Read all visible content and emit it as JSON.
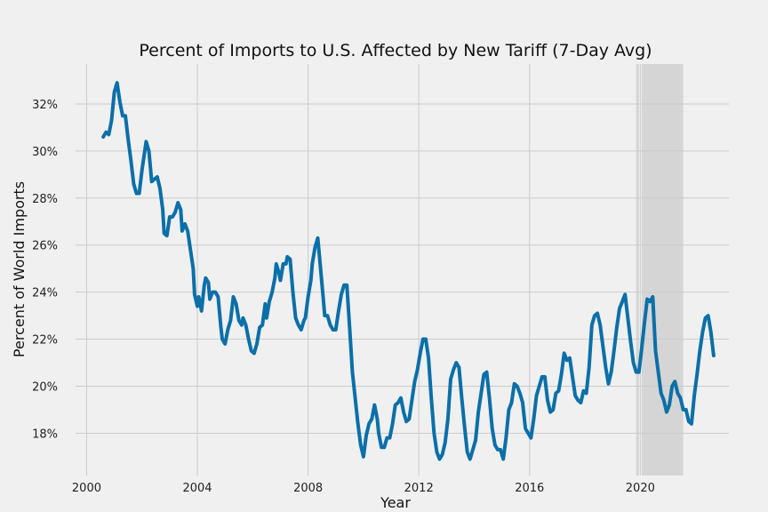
{
  "chart_data": {
    "type": "line",
    "title": "Percent of Imports to U.S. Affected by New Tariff (7-Day Avg)",
    "xlabel": "Year",
    "ylabel": "Percent of World Imports",
    "xlim": [
      1999.6,
      2023.2
    ],
    "ylim": [
      16.2,
      33.7
    ],
    "xticks": [
      2000,
      2004,
      2008,
      2012,
      2016,
      2020
    ],
    "xtick_labels": [
      "2000",
      "2004",
      "2008",
      "2012",
      "2016",
      "2020"
    ],
    "yticks": [
      18,
      20,
      22,
      24,
      26,
      28,
      30,
      32
    ],
    "ytick_labels": [
      "18%",
      "20%",
      "22%",
      "24%",
      "26%",
      "28%",
      "30%",
      "32%"
    ],
    "grid": true,
    "shaded_region": {
      "x_start": 2019.85,
      "x_end": 2021.55,
      "color": "#d5d5d5"
    },
    "reference_line": {
      "x": 2020.0,
      "color": "#f0f0f0"
    },
    "colors": {
      "background": "#f0f0f0",
      "line": "#0b6fa8",
      "grid": "#cbcbcb"
    },
    "series": [
      {
        "points": [
          [
            2000.6,
            30.6
          ],
          [
            2000.7,
            30.8
          ],
          [
            2000.8,
            30.7
          ],
          [
            2000.9,
            31.3
          ],
          [
            2001.0,
            32.5
          ],
          [
            2001.1,
            32.9
          ],
          [
            2001.2,
            32.1
          ],
          [
            2001.3,
            31.5
          ],
          [
            2001.4,
            31.5
          ],
          [
            2001.5,
            30.5
          ],
          [
            2001.6,
            29.6
          ],
          [
            2001.7,
            28.6
          ],
          [
            2001.8,
            28.2
          ],
          [
            2001.9,
            28.2
          ],
          [
            2002.0,
            29.2
          ],
          [
            2002.1,
            30.0
          ],
          [
            2002.15,
            30.4
          ],
          [
            2002.25,
            30.0
          ],
          [
            2002.35,
            28.7
          ],
          [
            2002.45,
            28.8
          ],
          [
            2002.55,
            28.9
          ],
          [
            2002.65,
            28.4
          ],
          [
            2002.75,
            27.5
          ],
          [
            2002.8,
            26.5
          ],
          [
            2002.9,
            26.4
          ],
          [
            2003.0,
            27.2
          ],
          [
            2003.1,
            27.2
          ],
          [
            2003.2,
            27.4
          ],
          [
            2003.3,
            27.8
          ],
          [
            2003.4,
            27.5
          ],
          [
            2003.45,
            26.6
          ],
          [
            2003.55,
            26.9
          ],
          [
            2003.65,
            26.6
          ],
          [
            2003.75,
            25.8
          ],
          [
            2003.85,
            25.0
          ],
          [
            2003.9,
            23.9
          ],
          [
            2004.0,
            23.4
          ],
          [
            2004.05,
            23.8
          ],
          [
            2004.1,
            23.5
          ],
          [
            2004.15,
            23.2
          ],
          [
            2004.25,
            24.3
          ],
          [
            2004.3,
            24.6
          ],
          [
            2004.4,
            24.4
          ],
          [
            2004.45,
            23.7
          ],
          [
            2004.55,
            24.0
          ],
          [
            2004.65,
            24.0
          ],
          [
            2004.75,
            23.8
          ],
          [
            2004.85,
            22.5
          ],
          [
            2004.9,
            22.0
          ],
          [
            2005.0,
            21.8
          ],
          [
            2005.1,
            22.4
          ],
          [
            2005.2,
            22.8
          ],
          [
            2005.3,
            23.8
          ],
          [
            2005.4,
            23.5
          ],
          [
            2005.5,
            22.8
          ],
          [
            2005.6,
            22.6
          ],
          [
            2005.65,
            22.9
          ],
          [
            2005.75,
            22.6
          ],
          [
            2005.85,
            22.0
          ],
          [
            2005.95,
            21.5
          ],
          [
            2006.05,
            21.4
          ],
          [
            2006.15,
            21.8
          ],
          [
            2006.25,
            22.5
          ],
          [
            2006.35,
            22.6
          ],
          [
            2006.45,
            23.5
          ],
          [
            2006.5,
            22.9
          ],
          [
            2006.6,
            23.6
          ],
          [
            2006.7,
            24.0
          ],
          [
            2006.8,
            24.6
          ],
          [
            2006.85,
            25.2
          ],
          [
            2006.95,
            24.8
          ],
          [
            2007.0,
            24.5
          ],
          [
            2007.1,
            25.2
          ],
          [
            2007.2,
            25.2
          ],
          [
            2007.25,
            25.5
          ],
          [
            2007.35,
            25.4
          ],
          [
            2007.45,
            24.0
          ],
          [
            2007.55,
            22.9
          ],
          [
            2007.65,
            22.6
          ],
          [
            2007.75,
            22.4
          ],
          [
            2007.85,
            22.8
          ],
          [
            2007.9,
            22.9
          ],
          [
            2008.0,
            23.8
          ],
          [
            2008.1,
            24.5
          ],
          [
            2008.15,
            25.2
          ],
          [
            2008.25,
            25.9
          ],
          [
            2008.35,
            26.3
          ],
          [
            2008.45,
            25.0
          ],
          [
            2008.55,
            23.7
          ],
          [
            2008.6,
            23.0
          ],
          [
            2008.7,
            23.0
          ],
          [
            2008.8,
            22.6
          ],
          [
            2008.9,
            22.4
          ],
          [
            2009.0,
            22.4
          ],
          [
            2009.1,
            23.2
          ],
          [
            2009.2,
            23.9
          ],
          [
            2009.3,
            24.3
          ],
          [
            2009.4,
            24.3
          ],
          [
            2009.5,
            22.5
          ],
          [
            2009.6,
            20.6
          ],
          [
            2009.7,
            19.5
          ],
          [
            2009.8,
            18.4
          ],
          [
            2009.9,
            17.5
          ],
          [
            2010.0,
            17.0
          ],
          [
            2010.1,
            17.9
          ],
          [
            2010.2,
            18.4
          ],
          [
            2010.3,
            18.6
          ],
          [
            2010.4,
            19.2
          ],
          [
            2010.5,
            18.6
          ],
          [
            2010.55,
            18.0
          ],
          [
            2010.65,
            17.4
          ],
          [
            2010.75,
            17.4
          ],
          [
            2010.85,
            17.8
          ],
          [
            2010.95,
            17.8
          ],
          [
            2011.05,
            18.4
          ],
          [
            2011.15,
            19.2
          ],
          [
            2011.25,
            19.3
          ],
          [
            2011.35,
            19.5
          ],
          [
            2011.45,
            18.9
          ],
          [
            2011.55,
            18.5
          ],
          [
            2011.65,
            18.6
          ],
          [
            2011.75,
            19.4
          ],
          [
            2011.85,
            20.2
          ],
          [
            2011.95,
            20.7
          ],
          [
            2012.05,
            21.4
          ],
          [
            2012.15,
            22.0
          ],
          [
            2012.25,
            22.0
          ],
          [
            2012.35,
            21.2
          ],
          [
            2012.45,
            19.5
          ],
          [
            2012.55,
            18.0
          ],
          [
            2012.65,
            17.2
          ],
          [
            2012.75,
            16.9
          ],
          [
            2012.85,
            17.1
          ],
          [
            2012.95,
            17.6
          ],
          [
            2013.05,
            18.6
          ],
          [
            2013.15,
            20.3
          ],
          [
            2013.25,
            20.7
          ],
          [
            2013.35,
            21.0
          ],
          [
            2013.45,
            20.8
          ],
          [
            2013.55,
            19.5
          ],
          [
            2013.65,
            18.3
          ],
          [
            2013.75,
            17.2
          ],
          [
            2013.85,
            16.9
          ],
          [
            2013.95,
            17.3
          ],
          [
            2014.05,
            17.7
          ],
          [
            2014.15,
            18.9
          ],
          [
            2014.25,
            19.7
          ],
          [
            2014.35,
            20.5
          ],
          [
            2014.45,
            20.6
          ],
          [
            2014.55,
            19.5
          ],
          [
            2014.65,
            18.2
          ],
          [
            2014.75,
            17.5
          ],
          [
            2014.85,
            17.3
          ],
          [
            2014.95,
            17.3
          ],
          [
            2015.05,
            16.9
          ],
          [
            2015.15,
            17.8
          ],
          [
            2015.25,
            19.0
          ],
          [
            2015.35,
            19.3
          ],
          [
            2015.45,
            20.1
          ],
          [
            2015.55,
            20.0
          ],
          [
            2015.65,
            19.7
          ],
          [
            2015.75,
            19.3
          ],
          [
            2015.85,
            18.2
          ],
          [
            2015.95,
            18.0
          ],
          [
            2016.05,
            17.8
          ],
          [
            2016.15,
            18.6
          ],
          [
            2016.25,
            19.6
          ],
          [
            2016.35,
            20.0
          ],
          [
            2016.45,
            20.4
          ],
          [
            2016.55,
            20.4
          ],
          [
            2016.65,
            19.4
          ],
          [
            2016.75,
            18.9
          ],
          [
            2016.85,
            19.0
          ],
          [
            2016.95,
            19.7
          ],
          [
            2017.05,
            19.8
          ],
          [
            2017.15,
            20.5
          ],
          [
            2017.25,
            21.4
          ],
          [
            2017.35,
            21.1
          ],
          [
            2017.45,
            21.2
          ],
          [
            2017.55,
            20.4
          ],
          [
            2017.65,
            19.6
          ],
          [
            2017.75,
            19.4
          ],
          [
            2017.85,
            19.3
          ],
          [
            2017.95,
            19.8
          ],
          [
            2018.05,
            19.7
          ],
          [
            2018.15,
            20.8
          ],
          [
            2018.25,
            22.6
          ],
          [
            2018.35,
            23.0
          ],
          [
            2018.45,
            23.1
          ],
          [
            2018.55,
            22.6
          ],
          [
            2018.65,
            21.7
          ],
          [
            2018.75,
            20.8
          ],
          [
            2018.85,
            20.1
          ],
          [
            2018.95,
            20.6
          ],
          [
            2019.05,
            21.5
          ],
          [
            2019.15,
            22.5
          ],
          [
            2019.25,
            23.3
          ],
          [
            2019.35,
            23.6
          ],
          [
            2019.45,
            23.9
          ],
          [
            2019.55,
            22.9
          ],
          [
            2019.65,
            21.9
          ],
          [
            2019.75,
            21.0
          ],
          [
            2019.85,
            20.6
          ],
          [
            2019.95,
            20.6
          ],
          [
            2020.05,
            21.6
          ],
          [
            2020.15,
            22.7
          ],
          [
            2020.25,
            23.7
          ],
          [
            2020.35,
            23.6
          ],
          [
            2020.45,
            23.8
          ],
          [
            2020.55,
            21.5
          ],
          [
            2020.65,
            20.6
          ],
          [
            2020.75,
            19.7
          ],
          [
            2020.85,
            19.4
          ],
          [
            2020.95,
            18.9
          ],
          [
            2021.05,
            19.2
          ],
          [
            2021.15,
            20.0
          ],
          [
            2021.25,
            20.2
          ],
          [
            2021.35,
            19.7
          ],
          [
            2021.45,
            19.5
          ],
          [
            2021.55,
            19.0
          ],
          [
            2021.65,
            19.0
          ],
          [
            2021.75,
            18.5
          ],
          [
            2021.85,
            18.4
          ],
          [
            2021.95,
            19.6
          ],
          [
            2022.05,
            20.5
          ],
          [
            2022.15,
            21.5
          ],
          [
            2022.25,
            22.3
          ],
          [
            2022.35,
            22.9
          ],
          [
            2022.45,
            23.0
          ],
          [
            2022.55,
            22.3
          ],
          [
            2022.65,
            21.3
          ]
        ]
      }
    ]
  }
}
